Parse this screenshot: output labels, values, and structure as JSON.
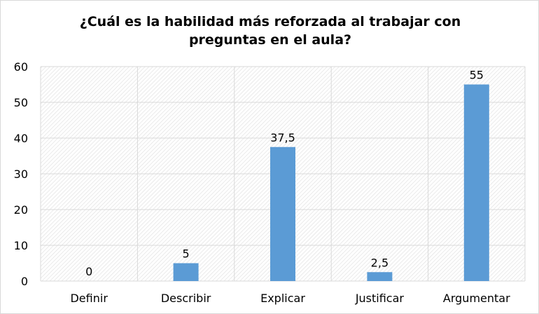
{
  "chart_data": {
    "type": "bar",
    "title": "¿Cuál es la habilidad más reforzada al trabajar con preguntas en el aula?",
    "categories": [
      "Definir",
      "Describir",
      "Explicar",
      "Justificar",
      "Argumentar"
    ],
    "values": [
      0,
      5,
      37.5,
      2.5,
      55
    ],
    "data_labels": [
      "0",
      "5",
      "37,5",
      "2,5",
      "55"
    ],
    "ylim": [
      0,
      60
    ],
    "yticks": [
      "0",
      "10",
      "20",
      "30",
      "40",
      "50",
      "60"
    ],
    "grid": true,
    "legend": "none",
    "bar_color": "#5b9bd5"
  }
}
